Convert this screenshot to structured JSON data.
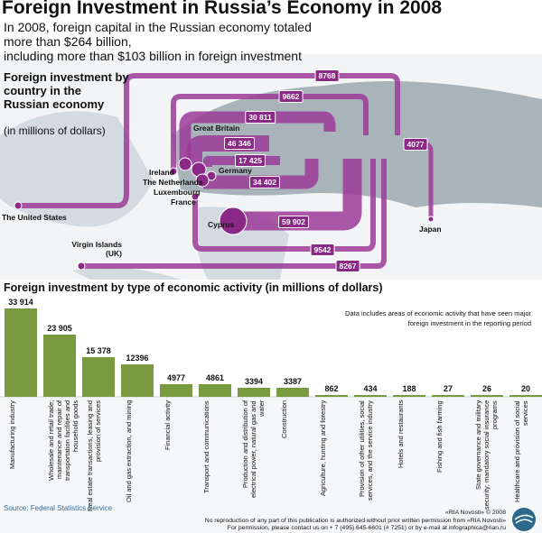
{
  "title": "Foreign Investment in Russia’s Economy in 2008",
  "subtitle": [
    "In 2008, foreign capital in the Russian economy totaled",
    "more than $264 billion,",
    "including more than $103 billion in foreign investment"
  ],
  "map": {
    "title": "Foreign investment by country in the Russian economy",
    "units": "(in millions of dollars)",
    "flow_color": "#9c3a98",
    "flows": [
      {
        "country": "The United States",
        "value": "8768"
      },
      {
        "country": "Ireland",
        "value": "9662"
      },
      {
        "country": "Great Britain",
        "value": "30 811"
      },
      {
        "country": "The Netherlands",
        "value": "46 346"
      },
      {
        "country": "Germany",
        "value": "17 425"
      },
      {
        "country": "Luxembourg",
        "value": "34 402"
      },
      {
        "country": "Cyprus",
        "value": "59 902"
      },
      {
        "country": "France",
        "value": "9542"
      },
      {
        "country": "Virgin Islands (UK)",
        "value": "8267"
      },
      {
        "country": "Japan",
        "value": "4077"
      }
    ]
  },
  "chart_data": {
    "type": "bar",
    "title": "Foreign investment by type of economic activity (in millions of dollars)",
    "bar_color": "#7a9a3f",
    "note": "Data includes areas of economic activity that have seen major foreign investment in the reporting period",
    "categories": [
      "Manufacturing industry",
      "Wholesale and retail trade; maintenance and repair of transportation facilities and household goods",
      "Real estate transactions, leasing and provision of services",
      "Oil and gas extraction, and mining",
      "Financial activity",
      "Transport and communications",
      "Production and distribution of electrical power, natural gas and water",
      "Construction",
      "Agriculture, hunting and forestry",
      "Provision of other utilities, social services, and the service industry",
      "Hotels and restaurants",
      "Fishing and fish farming",
      "State governance and military security; mandatory social insurance programs",
      "Healthcare and provision of social services"
    ],
    "values": [
      33914,
      23905,
      15378,
      12396,
      4977,
      4861,
      3394,
      3387,
      862,
      434,
      188,
      27,
      26,
      20
    ],
    "labels": [
      "33 914",
      "23 905",
      "15 378",
      "12396",
      "4977",
      "4861",
      "3394",
      "3387",
      "862",
      "434",
      "188",
      "27",
      "26",
      "20"
    ]
  },
  "footer": {
    "source": "Source: Federal Statistics Service",
    "copyright": "«RIA Novosti» © 2008",
    "rights": "No reproduction of any part of this publication is authorized without prior written permission from «RIA Novosti»",
    "contact": "For permission, please contact us on + 7 (495) 645-6601 (# 7251) or by e-mail at infographica@rian.ru"
  }
}
